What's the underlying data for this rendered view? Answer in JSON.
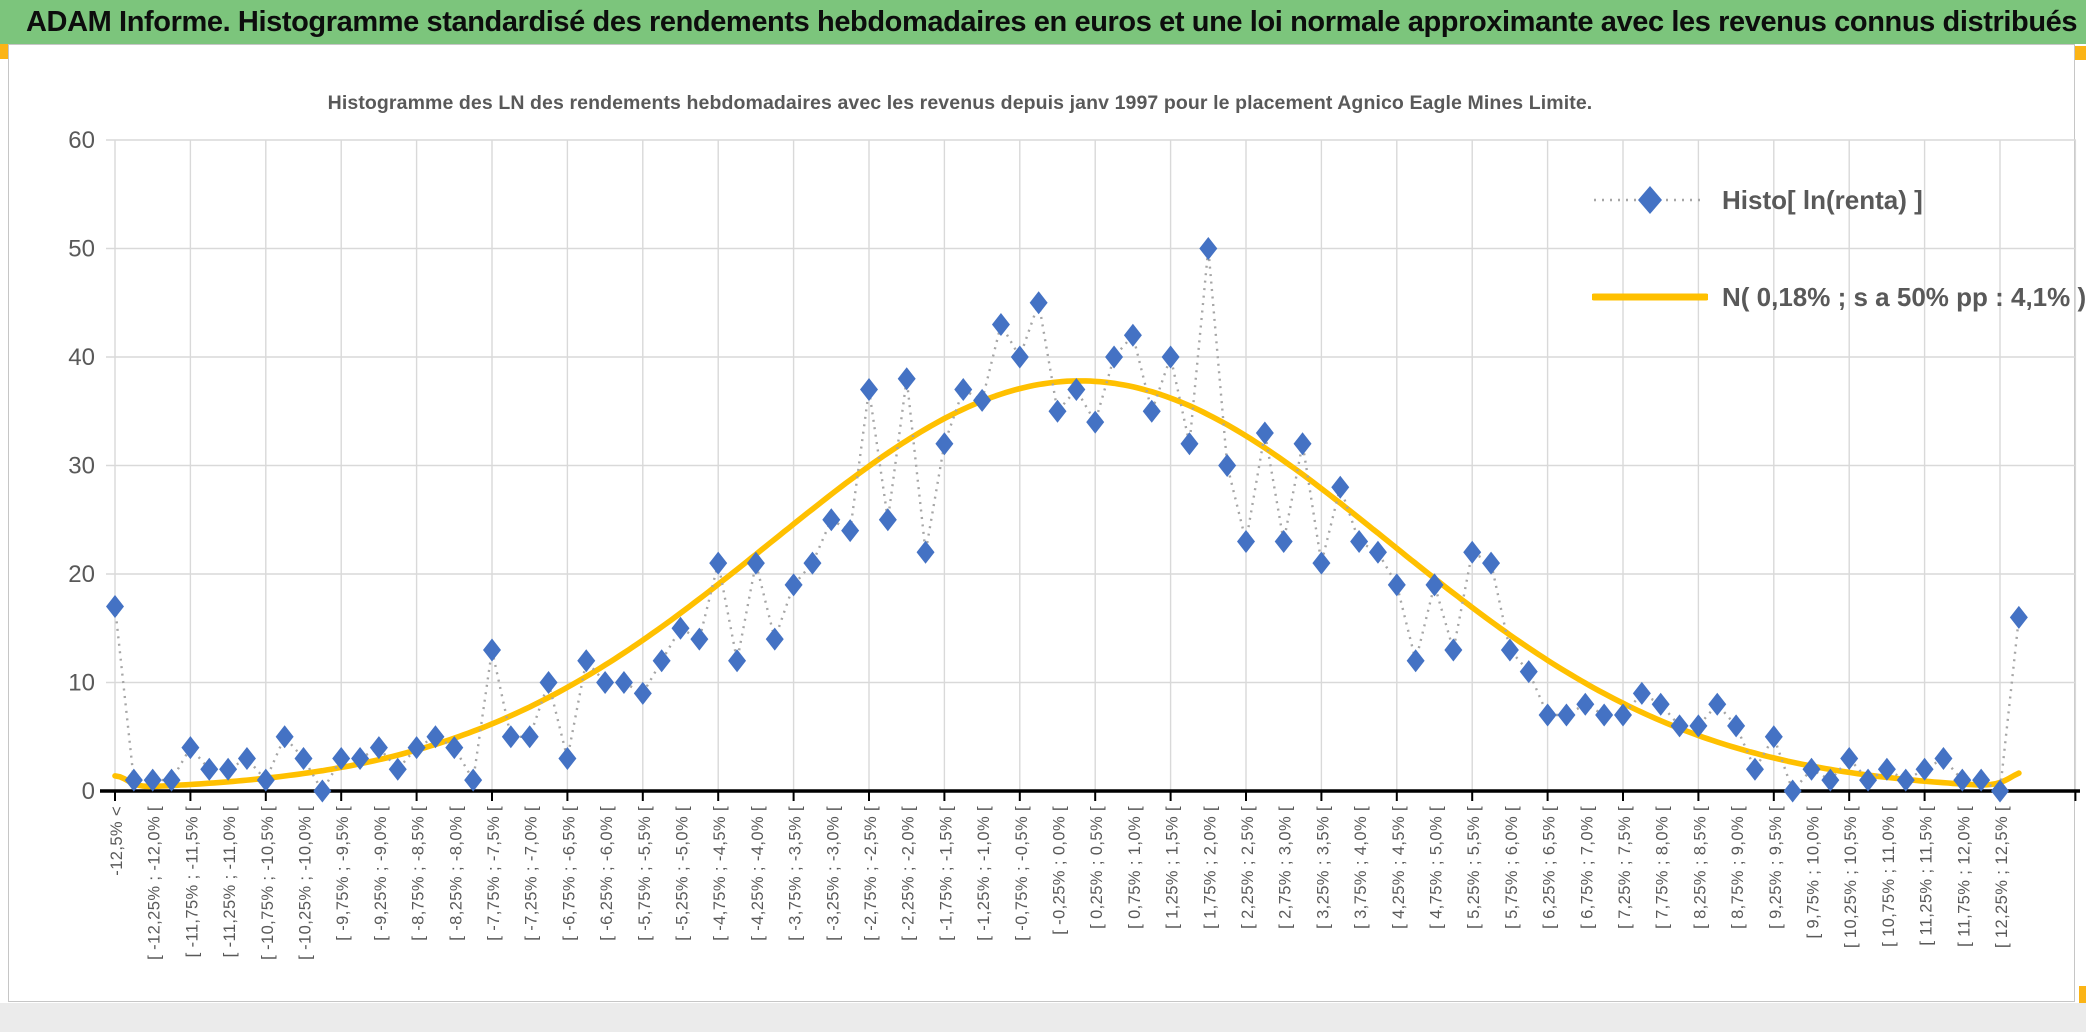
{
  "header": {
    "title": "ADAM Informe. Histogramme standardisé des rendements hebdomadaires en euros et une loi normale approximante avec les revenus connus distribués"
  },
  "colors": {
    "header_green": "#7cc57c",
    "accent_gold": "#FBB416",
    "curve_gold": "#FFC000",
    "marker_blue": "#4472C4",
    "dotted_gray": "#A6A6A6",
    "grid_gray": "#D9D9D9",
    "axis_black": "#000000",
    "text_gray": "#595959"
  },
  "chart_data": {
    "type": "line",
    "title": "Histogramme des LN des rendements hebdomadaires avec les revenus depuis janv 1997 pour le placement Agnico Eagle Mines Limite.",
    "xlabel": "",
    "ylabel": "",
    "ylim": [
      0,
      60
    ],
    "yticks": [
      0,
      10,
      20,
      30,
      40,
      50,
      60
    ],
    "grid": true,
    "legend_position": "top-right",
    "bin_width_pct": 0.25,
    "n_bins": 102,
    "x_labels_on_every_second_bin": [
      "-12,5% <",
      "[ -12,25% ; -12,0% [",
      "[ -11,75% ; -11,5% [",
      "[ -11,25% ; -11,0% [",
      "[ -10,75% ; -10,5% [",
      "[ -10,25% ; -10,0% [",
      "[ -9,75% ; -9,5% [",
      "[ -9,25% ; -9,0% [",
      "[ -8,75% ; -8,5% [",
      "[ -8,25% ; -8,0% [",
      "[ -7,75% ; -7,5% [",
      "[ -7,25% ; -7,0% [",
      "[ -6,75% ; -6,5% [",
      "[ -6,25% ; -6,0% [",
      "[ -5,75% ; -5,5% [",
      "[ -5,25% ; -5,0% [",
      "[ -4,75% ; -4,5% [",
      "[ -4,25% ; -4,0% [",
      "[ -3,75% ; -3,5% [",
      "[ -3,25% ; -3,0% [",
      "[ -2,75% ; -2,5% [",
      "[ -2,25% ; -2,0% [",
      "[ -1,75% ; -1,5% [",
      "[ -1,25% ; -1,0% [",
      "[ -0,75% ; -0,5% [",
      "[ -0,25% ; 0,0% [",
      "[ 0,25% ; 0,5% [",
      "[ 0,75% ; 1,0% [",
      "[ 1,25% ; 1,5% [",
      "[ 1,75% ; 2,0% [",
      "[ 2,25% ; 2,5% [",
      "[ 2,75% ; 3,0% [",
      "[ 3,25% ; 3,5% [",
      "[ 3,75% ; 4,0% [",
      "[ 4,25% ; 4,5% [",
      "[ 4,75% ; 5,0% [",
      "[ 5,25% ; 5,5% [",
      "[ 5,75% ; 6,0% [",
      "[ 6,25% ; 6,5% [",
      "[ 6,75% ; 7,0% [",
      "[ 7,25% ; 7,5% [",
      "[ 7,75% ; 8,0% [",
      "[ 8,25% ; 8,5% [",
      "[ 8,75% ; 9,0% [",
      "[ 9,25% ; 9,5% [",
      "[ 9,75% ; 10,0% [",
      "[ 10,25% ; 10,5% [",
      "[ 10,75% ; 11,0% [",
      "[ 11,25% ; 11,5% [",
      "[ 11,75% ; 12,0% [",
      "[ 12,25% ; 12,5% ["
    ],
    "series": [
      {
        "name": "Histo[ ln(renta) ]",
        "style": "dotted-line-with-diamond-markers",
        "color": "#4472C4",
        "values": [
          17,
          1,
          1,
          1,
          4,
          2,
          2,
          3,
          1,
          5,
          3,
          0,
          3,
          3,
          4,
          2,
          4,
          5,
          4,
          1,
          13,
          5,
          5,
          10,
          3,
          12,
          10,
          10,
          9,
          12,
          15,
          14,
          21,
          12,
          21,
          14,
          19,
          21,
          25,
          24,
          37,
          25,
          38,
          22,
          32,
          37,
          36,
          43,
          40,
          45,
          35,
          37,
          34,
          40,
          42,
          35,
          40,
          32,
          50,
          30,
          23,
          33,
          23,
          32,
          21,
          28,
          23,
          22,
          19,
          12,
          19,
          13,
          22,
          21,
          13,
          11,
          7,
          7,
          8,
          7,
          7,
          9,
          8,
          6,
          6,
          8,
          6,
          2,
          5,
          0,
          2,
          1,
          3,
          1,
          2,
          1,
          2,
          3,
          1,
          1,
          0,
          16
        ]
      },
      {
        "name": "N( 0,18% ; s a 50% pp : 4,1% )",
        "style": "smooth-curve",
        "color": "#FFC000",
        "mean_pct": 0.18,
        "sigma_pct": 4.1,
        "peak_value": 37.8,
        "mean_bin_index": 51.2,
        "sigma_in_bins": 16.4,
        "edge_bump_first": 1.1,
        "edge_bump_last": 1.5
      }
    ]
  }
}
